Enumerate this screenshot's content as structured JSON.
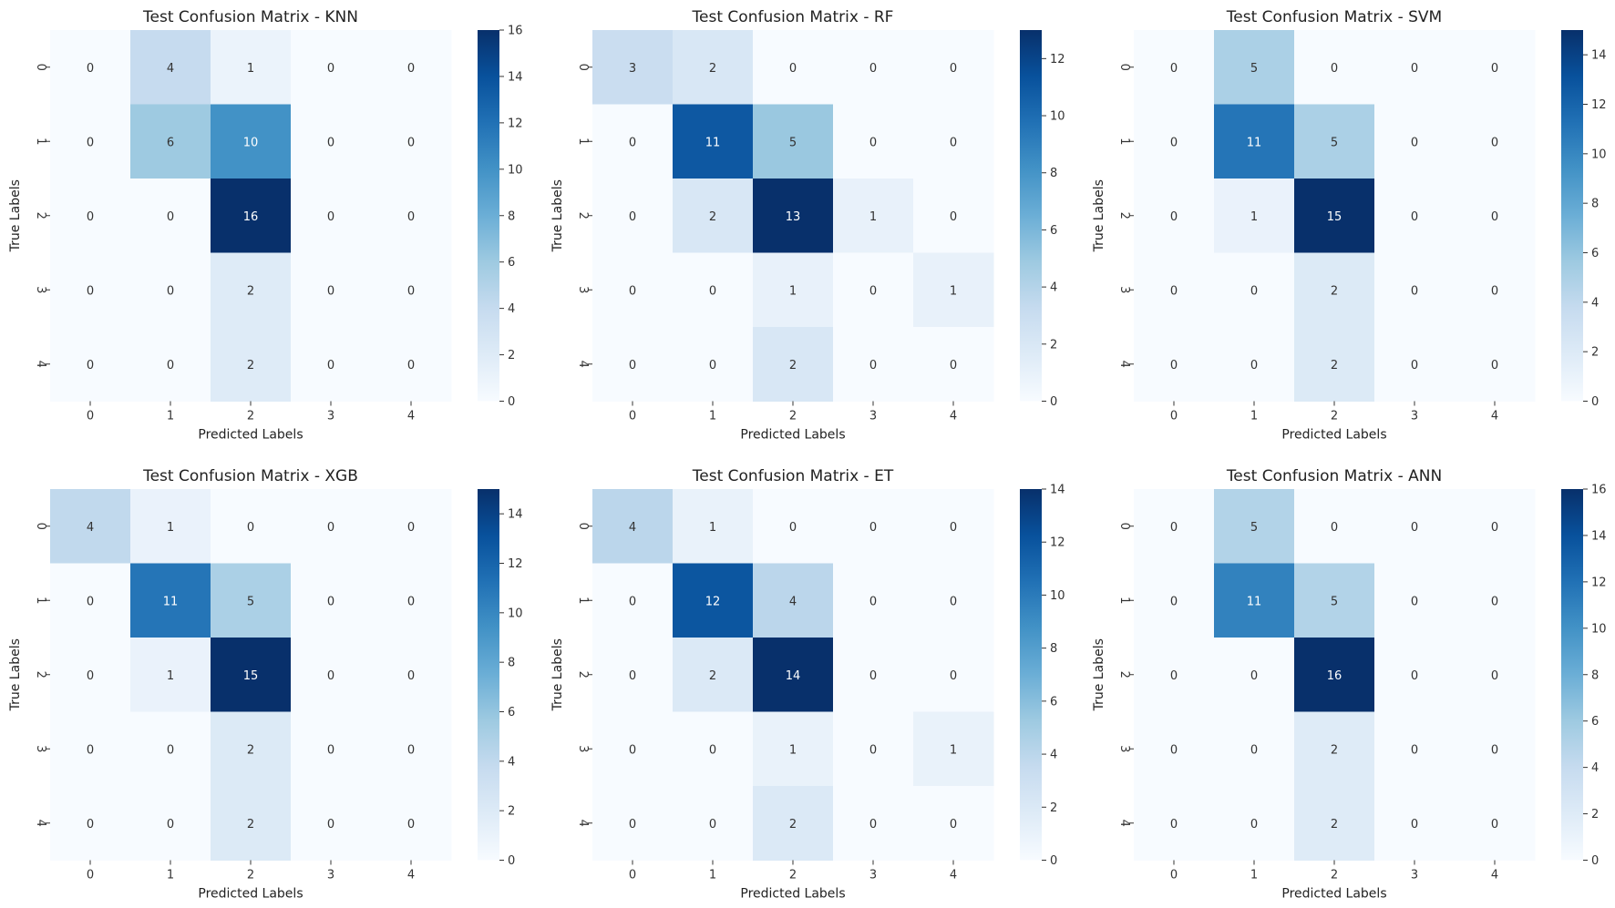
{
  "chart_data": [
    {
      "type": "heatmap",
      "title": "Test Confusion Matrix - KNN",
      "xlabel": "Predicted Labels",
      "ylabel": "True Labels",
      "x_ticks": [
        "0",
        "1",
        "2",
        "3",
        "4"
      ],
      "y_ticks": [
        "0",
        "1",
        "2",
        "3",
        "4"
      ],
      "values": [
        [
          0,
          4,
          1,
          0,
          0
        ],
        [
          0,
          6,
          10,
          0,
          0
        ],
        [
          0,
          0,
          16,
          0,
          0
        ],
        [
          0,
          0,
          2,
          0,
          0
        ],
        [
          0,
          0,
          2,
          0,
          0
        ]
      ],
      "colorbar": {
        "min": 0,
        "max": 16,
        "ticks": [
          "0",
          "2",
          "4",
          "6",
          "8",
          "10",
          "12",
          "14",
          "16"
        ]
      }
    },
    {
      "type": "heatmap",
      "title": "Test Confusion Matrix - RF",
      "xlabel": "Predicted Labels",
      "ylabel": "True Labels",
      "x_ticks": [
        "0",
        "1",
        "2",
        "3",
        "4"
      ],
      "y_ticks": [
        "0",
        "1",
        "2",
        "3",
        "4"
      ],
      "values": [
        [
          3,
          2,
          0,
          0,
          0
        ],
        [
          0,
          11,
          5,
          0,
          0
        ],
        [
          0,
          2,
          13,
          1,
          0
        ],
        [
          0,
          0,
          1,
          0,
          1
        ],
        [
          0,
          0,
          2,
          0,
          0
        ]
      ],
      "colorbar": {
        "min": 0,
        "max": 13,
        "ticks": [
          "0",
          "2",
          "4",
          "6",
          "8",
          "10",
          "12"
        ]
      }
    },
    {
      "type": "heatmap",
      "title": "Test Confusion Matrix - SVM",
      "xlabel": "Predicted Labels",
      "ylabel": "True Labels",
      "x_ticks": [
        "0",
        "1",
        "2",
        "3",
        "4"
      ],
      "y_ticks": [
        "0",
        "1",
        "2",
        "3",
        "4"
      ],
      "values": [
        [
          0,
          5,
          0,
          0,
          0
        ],
        [
          0,
          11,
          5,
          0,
          0
        ],
        [
          0,
          1,
          15,
          0,
          0
        ],
        [
          0,
          0,
          2,
          0,
          0
        ],
        [
          0,
          0,
          2,
          0,
          0
        ]
      ],
      "colorbar": {
        "min": 0,
        "max": 15,
        "ticks": [
          "0",
          "2",
          "4",
          "6",
          "8",
          "10",
          "12",
          "14"
        ]
      }
    },
    {
      "type": "heatmap",
      "title": "Test Confusion Matrix - XGB",
      "xlabel": "Predicted Labels",
      "ylabel": "True Labels",
      "x_ticks": [
        "0",
        "1",
        "2",
        "3",
        "4"
      ],
      "y_ticks": [
        "0",
        "1",
        "2",
        "3",
        "4"
      ],
      "values": [
        [
          4,
          1,
          0,
          0,
          0
        ],
        [
          0,
          11,
          5,
          0,
          0
        ],
        [
          0,
          1,
          15,
          0,
          0
        ],
        [
          0,
          0,
          2,
          0,
          0
        ],
        [
          0,
          0,
          2,
          0,
          0
        ]
      ],
      "colorbar": {
        "min": 0,
        "max": 15,
        "ticks": [
          "0",
          "2",
          "4",
          "6",
          "8",
          "10",
          "12",
          "14"
        ]
      }
    },
    {
      "type": "heatmap",
      "title": "Test Confusion Matrix - ET",
      "xlabel": "Predicted Labels",
      "ylabel": "True Labels",
      "x_ticks": [
        "0",
        "1",
        "2",
        "3",
        "4"
      ],
      "y_ticks": [
        "0",
        "1",
        "2",
        "3",
        "4"
      ],
      "values": [
        [
          4,
          1,
          0,
          0,
          0
        ],
        [
          0,
          12,
          4,
          0,
          0
        ],
        [
          0,
          2,
          14,
          0,
          0
        ],
        [
          0,
          0,
          1,
          0,
          1
        ],
        [
          0,
          0,
          2,
          0,
          0
        ]
      ],
      "colorbar": {
        "min": 0,
        "max": 14,
        "ticks": [
          "0",
          "2",
          "4",
          "6",
          "8",
          "10",
          "12",
          "14"
        ]
      }
    },
    {
      "type": "heatmap",
      "title": "Test Confusion Matrix - ANN",
      "xlabel": "Predicted Labels",
      "ylabel": "True Labels",
      "x_ticks": [
        "0",
        "1",
        "2",
        "3",
        "4"
      ],
      "y_ticks": [
        "0",
        "1",
        "2",
        "3",
        "4"
      ],
      "values": [
        [
          0,
          5,
          0,
          0,
          0
        ],
        [
          0,
          11,
          5,
          0,
          0
        ],
        [
          0,
          0,
          16,
          0,
          0
        ],
        [
          0,
          0,
          2,
          0,
          0
        ],
        [
          0,
          0,
          2,
          0,
          0
        ]
      ],
      "colorbar": {
        "min": 0,
        "max": 16,
        "ticks": [
          "0",
          "2",
          "4",
          "6",
          "8",
          "10",
          "12",
          "14",
          "16"
        ]
      }
    }
  ],
  "colormap": [
    "#f7fbff",
    "#deebf7",
    "#c6dbef",
    "#9ecae1",
    "#6baed6",
    "#4292c6",
    "#2171b5",
    "#08519c",
    "#08306b"
  ]
}
